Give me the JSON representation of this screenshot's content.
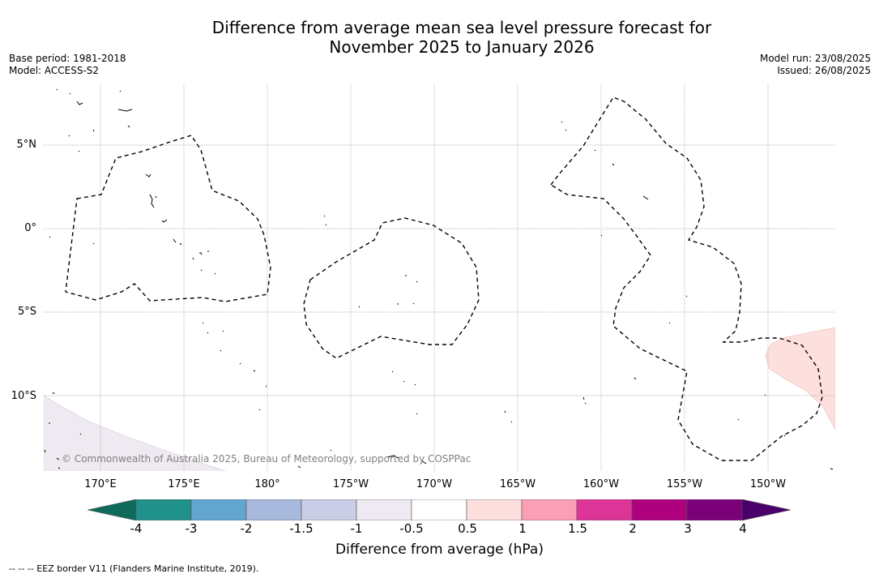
{
  "title_line1": "Difference from average mean sea level pressure forecast for",
  "title_line2": "November 2025 to January 2026",
  "base_period": "Base period: 1981-2018",
  "model": "Model: ACCESS-S2",
  "model_run": "Model run: 23/08/2025",
  "issued": "Issued: 26/08/2025",
  "lat_labels": [
    "5°N",
    "0°",
    "5°S",
    "10°S"
  ],
  "lon_labels": [
    "170°E",
    "175°E",
    "180°",
    "175°W",
    "170°W",
    "165°W",
    "160°W",
    "155°W",
    "150°W"
  ],
  "colorbar": {
    "label": "Difference from average (hPa)",
    "ticks": [
      "-4",
      "-3",
      "-2",
      "-1.5",
      "-1",
      "-0.5",
      "0.5",
      "1",
      "1.5",
      "2",
      "3",
      "4"
    ],
    "colors": [
      "#0e6b5c",
      "#21918c",
      "#62a6d0",
      "#a7b9dc",
      "#cbcde6",
      "#efeaf2",
      "#ffffff",
      "#fde0dd",
      "#fa9fb5",
      "#dd3497",
      "#ae017e",
      "#7a0177",
      "#49006a"
    ]
  },
  "copyright": "© Commonwealth of Australia 2025, Bureau of Meteorology, supported by COSPPac",
  "legend_footer": "-- -- -- EEZ border V11 (Flanders Marine Institute, 2019)."
}
